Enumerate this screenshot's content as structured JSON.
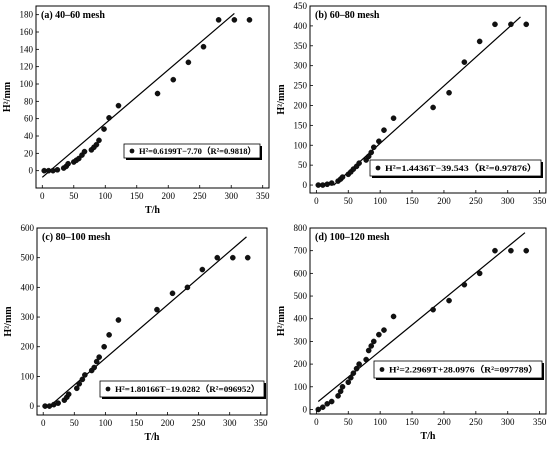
{
  "chart_data": [
    {
      "type": "scatter",
      "title": "(a) 40–60 mesh",
      "xlabel": "T/h",
      "ylabel": "H²/mm",
      "xlim": [
        -10,
        360
      ],
      "ylim": [
        -20,
        190
      ],
      "xticks": [
        "0",
        "50",
        "100",
        "150",
        "200",
        "250",
        "300",
        "350"
      ],
      "yticks": [
        "0",
        "20",
        "40",
        "60",
        "80",
        "100",
        "120",
        "140",
        "160",
        "180"
      ],
      "legend_text": "H²=0.6199T−7.70（R²=0.9818）",
      "legend_position": "middle-right",
      "fit_line": {
        "slope": 0.6199,
        "intercept": -7.7,
        "x_range": [
          0,
          305
        ]
      },
      "points": {
        "x": [
          3,
          10,
          17,
          24,
          34,
          38,
          41,
          50,
          54,
          58,
          63,
          67,
          78,
          82,
          86,
          90,
          98,
          106,
          121,
          183,
          208,
          232,
          256,
          280,
          305,
          329
        ],
        "y": [
          0,
          0,
          0,
          1,
          3,
          5,
          8,
          10,
          12,
          14,
          18,
          22,
          24,
          27,
          30,
          35,
          48,
          61,
          75,
          89,
          105,
          125,
          143,
          174,
          174,
          174
        ]
      }
    },
    {
      "type": "scatter",
      "title": "(b) 60–80 mesh",
      "xlabel": "",
      "ylabel": "H²/mm",
      "xlim": [
        -10,
        360
      ],
      "ylim": [
        -20,
        450
      ],
      "xticks": [
        "0",
        "50",
        "100",
        "150",
        "200",
        "250",
        "300",
        "350"
      ],
      "yticks": [
        "0",
        "50",
        "100",
        "150",
        "200",
        "250",
        "300",
        "350",
        "400",
        "450"
      ],
      "legend_text": "H²=1.4436T−39.543（R²=0.97876）",
      "legend_position": "middle-right",
      "fit_line": {
        "slope": 1.4436,
        "intercept": -39.543,
        "x_range": [
          27,
          320
        ]
      },
      "points": {
        "x": [
          3,
          10,
          17,
          24,
          34,
          38,
          41,
          50,
          54,
          58,
          63,
          67,
          78,
          82,
          86,
          90,
          98,
          106,
          121,
          183,
          208,
          232,
          256,
          280,
          305,
          329
        ],
        "y": [
          0,
          0,
          2,
          5,
          10,
          15,
          20,
          27,
          33,
          40,
          47,
          55,
          63,
          72,
          82,
          95,
          110,
          138,
          168,
          195,
          232,
          309,
          361,
          404,
          404,
          404
        ]
      }
    },
    {
      "type": "scatter",
      "title": "(c) 80–100 mesh",
      "xlabel": "T/h",
      "ylabel": "H²/mm",
      "xlim": [
        -10,
        360
      ],
      "ylim": [
        -30,
        600
      ],
      "xticks": [
        "0",
        "50",
        "100",
        "150",
        "200",
        "250",
        "300",
        "350"
      ],
      "yticks": [
        "0",
        "100",
        "200",
        "300",
        "400",
        "500",
        "600"
      ],
      "legend_text": "H²=1.80166T−19.0282（R²=096952）",
      "legend_position": "bottom-right",
      "fit_line": {
        "slope": 1.80166,
        "intercept": -19.0282,
        "x_range": [
          8,
          327
        ]
      },
      "points": {
        "x": [
          3,
          10,
          17,
          24,
          34,
          38,
          41,
          54,
          58,
          63,
          67,
          78,
          82,
          86,
          90,
          98,
          106,
          121,
          183,
          208,
          232,
          256,
          280,
          305,
          329
        ],
        "y": [
          0,
          0,
          5,
          10,
          20,
          30,
          40,
          60,
          75,
          90,
          105,
          120,
          130,
          150,
          165,
          200,
          240,
          290,
          325,
          380,
          400,
          460,
          500,
          500,
          500
        ]
      }
    },
    {
      "type": "scatter",
      "title": "(d) 100–120 mesh",
      "xlabel": "T/h",
      "ylabel": "H²/mm",
      "xlim": [
        -10,
        360
      ],
      "ylim": [
        -20,
        800
      ],
      "xticks": [
        "0",
        "50",
        "100",
        "150",
        "200",
        "250",
        "300",
        "350"
      ],
      "yticks": [
        "0",
        "100",
        "200",
        "300",
        "400",
        "500",
        "600",
        "700",
        "800"
      ],
      "legend_text": "H²=2.2969T+28.0976（R²=097789）",
      "legend_position": "bottom-right",
      "fit_line": {
        "slope": 2.2969,
        "intercept": 28.0976,
        "x_range": [
          3,
          327
        ]
      },
      "points": {
        "x": [
          3,
          10,
          17,
          24,
          34,
          38,
          41,
          50,
          54,
          58,
          63,
          67,
          78,
          82,
          86,
          90,
          98,
          106,
          121,
          183,
          208,
          232,
          256,
          280,
          305,
          329
        ],
        "y": [
          0,
          10,
          25,
          35,
          60,
          80,
          100,
          120,
          140,
          160,
          180,
          200,
          220,
          260,
          280,
          300,
          330,
          350,
          410,
          440,
          480,
          550,
          600,
          700,
          700,
          700
        ]
      }
    }
  ]
}
